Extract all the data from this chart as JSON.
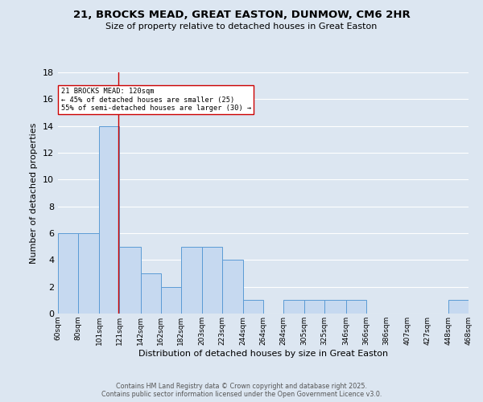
{
  "title_line1": "21, BROCKS MEAD, GREAT EASTON, DUNMOW, CM6 2HR",
  "title_line2": "Size of property relative to detached houses in Great Easton",
  "xlabel": "Distribution of detached houses by size in Great Easton",
  "ylabel": "Number of detached properties",
  "bins": [
    60,
    80,
    101,
    121,
    142,
    162,
    182,
    203,
    223,
    244,
    264,
    284,
    305,
    325,
    346,
    366,
    386,
    407,
    427,
    448,
    468
  ],
  "counts": [
    6,
    6,
    14,
    5,
    3,
    2,
    5,
    5,
    4,
    1,
    0,
    1,
    1,
    1,
    1,
    0,
    0,
    0,
    0,
    1
  ],
  "bar_color": "#c6d9f0",
  "bar_edge_color": "#5b9bd5",
  "vline_x": 120,
  "vline_color": "#cc0000",
  "annotation_text": "21 BROCKS MEAD: 120sqm\n← 45% of detached houses are smaller (25)\n55% of semi-detached houses are larger (30) →",
  "annotation_box_color": "white",
  "annotation_box_edge_color": "#cc0000",
  "ylim": [
    0,
    18
  ],
  "yticks": [
    0,
    2,
    4,
    6,
    8,
    10,
    12,
    14,
    16,
    18
  ],
  "background_color": "#dce6f1",
  "grid_color": "white",
  "footer_line1": "Contains HM Land Registry data © Crown copyright and database right 2025.",
  "footer_line2": "Contains public sector information licensed under the Open Government Licence v3.0.",
  "tick_labels": [
    "60sqm",
    "80sqm",
    "101sqm",
    "121sqm",
    "142sqm",
    "162sqm",
    "182sqm",
    "203sqm",
    "223sqm",
    "244sqm",
    "264sqm",
    "284sqm",
    "305sqm",
    "325sqm",
    "346sqm",
    "366sqm",
    "386sqm",
    "407sqm",
    "427sqm",
    "448sqm",
    "468sqm"
  ]
}
